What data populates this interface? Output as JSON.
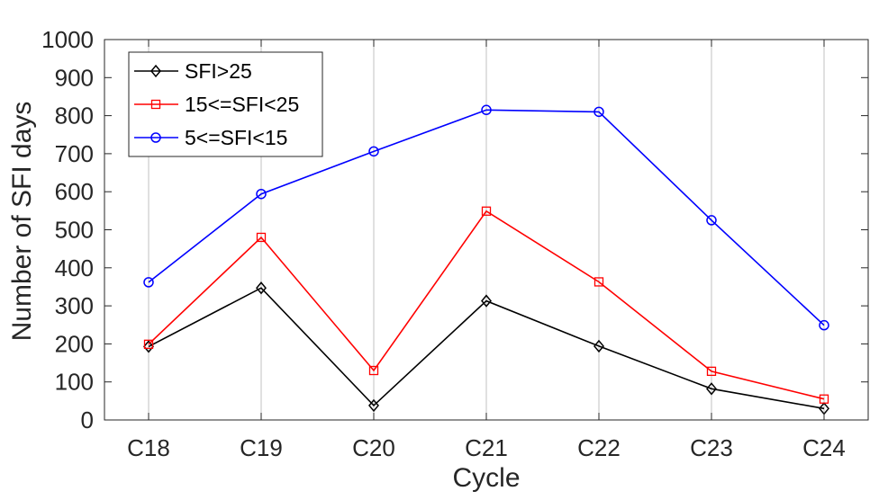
{
  "chart_data": {
    "type": "line",
    "title": "",
    "xlabel": "Cycle",
    "ylabel": "Number of SFI days",
    "categories": [
      "C18",
      "C19",
      "C20",
      "C21",
      "C22",
      "C23",
      "C24"
    ],
    "ylim": [
      0,
      1000
    ],
    "yticks": [
      0,
      100,
      200,
      300,
      400,
      500,
      600,
      700,
      800,
      900,
      1000
    ],
    "grid": "vertical",
    "legend_position": "top-left",
    "series": [
      {
        "name": "SFI>25",
        "color": "#000000",
        "marker": "diamond",
        "values": [
          193,
          347,
          38,
          313,
          194,
          82,
          30
        ]
      },
      {
        "name": "15<=SFI<25",
        "color": "#ff0000",
        "marker": "square",
        "values": [
          199,
          480,
          130,
          549,
          363,
          128,
          55
        ]
      },
      {
        "name": "5<=SFI<15",
        "color": "#0000ff",
        "marker": "circle",
        "values": [
          362,
          594,
          706,
          815,
          810,
          525,
          249
        ]
      }
    ]
  }
}
